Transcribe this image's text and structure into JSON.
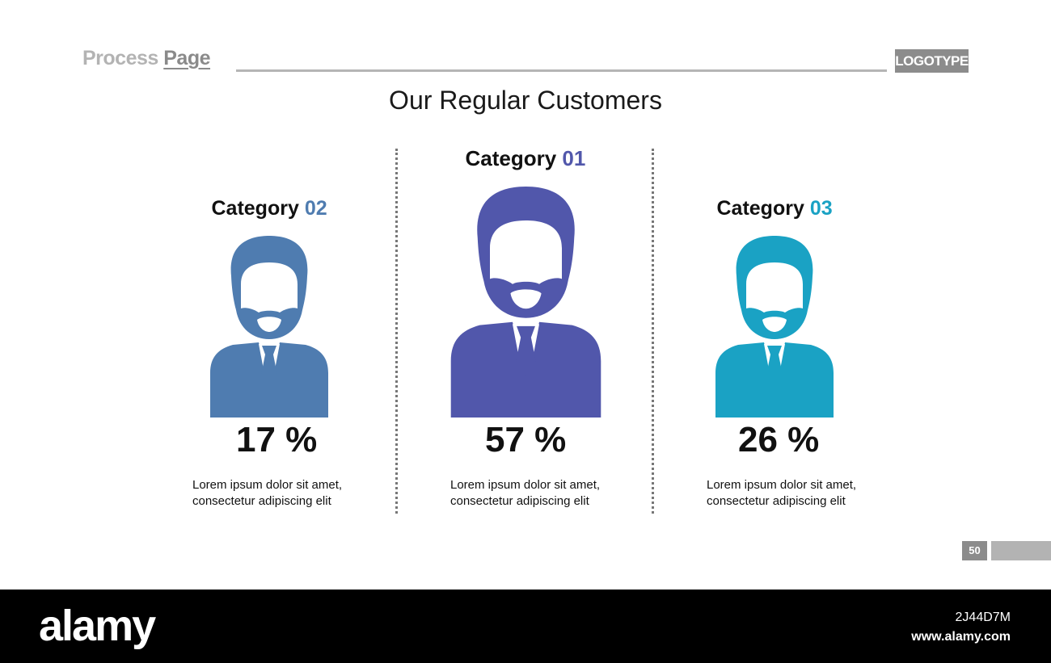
{
  "header": {
    "title_part1": "Process",
    "title_part2": "Page",
    "logo": "LOGOTYPE"
  },
  "slide_title": "Our Regular Customers",
  "chart_data": {
    "type": "pictorial",
    "title": "Our Regular Customers",
    "unit": "%",
    "categories": [
      {
        "label": "Category",
        "number": "02",
        "value": 17,
        "value_text": "17 %",
        "color": "#4f7cb0",
        "description": [
          "Lorem ipsum dolor sit amet,",
          "consectetur adipiscing elit"
        ]
      },
      {
        "label": "Category",
        "number": "01",
        "value": 57,
        "value_text": "57 %",
        "color": "#5157ab",
        "description": [
          "Lorem ipsum dolor sit amet,",
          "consectetur adipiscing elit"
        ]
      },
      {
        "label": "Category",
        "number": "03",
        "value": 26,
        "value_text": "26 %",
        "color": "#1aa2c4",
        "description": [
          "Lorem ipsum dolor sit amet,",
          "consectetur adipiscing elit"
        ]
      }
    ]
  },
  "page_number": "50",
  "footer": {
    "brand": "alamy",
    "image_id": "2J44D7M",
    "site": "www.alamy.com"
  },
  "icons": [
    "person-icon"
  ]
}
